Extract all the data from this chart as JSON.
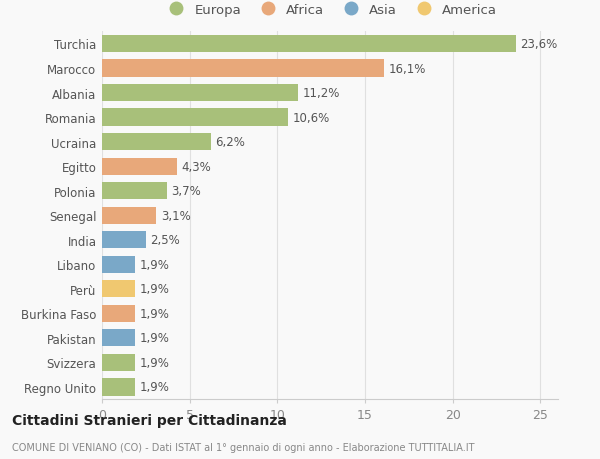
{
  "countries": [
    "Regno Unito",
    "Svizzera",
    "Pakistan",
    "Burkina Faso",
    "Perù",
    "Libano",
    "India",
    "Senegal",
    "Polonia",
    "Egitto",
    "Ucraina",
    "Romania",
    "Albania",
    "Marocco",
    "Turchia"
  ],
  "values": [
    1.9,
    1.9,
    1.9,
    1.9,
    1.9,
    1.9,
    2.5,
    3.1,
    3.7,
    4.3,
    6.2,
    10.6,
    11.2,
    16.1,
    23.6
  ],
  "labels": [
    "1,9%",
    "1,9%",
    "1,9%",
    "1,9%",
    "1,9%",
    "1,9%",
    "2,5%",
    "3,1%",
    "3,7%",
    "4,3%",
    "6,2%",
    "10,6%",
    "11,2%",
    "16,1%",
    "23,6%"
  ],
  "colors": [
    "#a8c07a",
    "#a8c07a",
    "#7aa8c8",
    "#e8a87a",
    "#f0c870",
    "#7aa8c8",
    "#7aa8c8",
    "#e8a87a",
    "#a8c07a",
    "#e8a87a",
    "#a8c07a",
    "#a8c07a",
    "#a8c07a",
    "#e8a87a",
    "#a8c07a"
  ],
  "legend_labels": [
    "Europa",
    "Africa",
    "Asia",
    "America"
  ],
  "legend_colors": [
    "#a8c07a",
    "#e8a87a",
    "#7aa8c8",
    "#f0c870"
  ],
  "title": "Cittadini Stranieri per Cittadinanza",
  "subtitle": "COMUNE DI VENIANO (CO) - Dati ISTAT al 1° gennaio di ogni anno - Elaborazione TUTTITALIA.IT",
  "xlim": [
    0,
    26
  ],
  "xticks": [
    0,
    5,
    10,
    15,
    20,
    25
  ],
  "background_color": "#f9f9f9",
  "grid_color": "#e0e0e0",
  "bar_height": 0.7,
  "label_fontsize": 8.5,
  "ytick_fontsize": 8.5,
  "xtick_fontsize": 9
}
